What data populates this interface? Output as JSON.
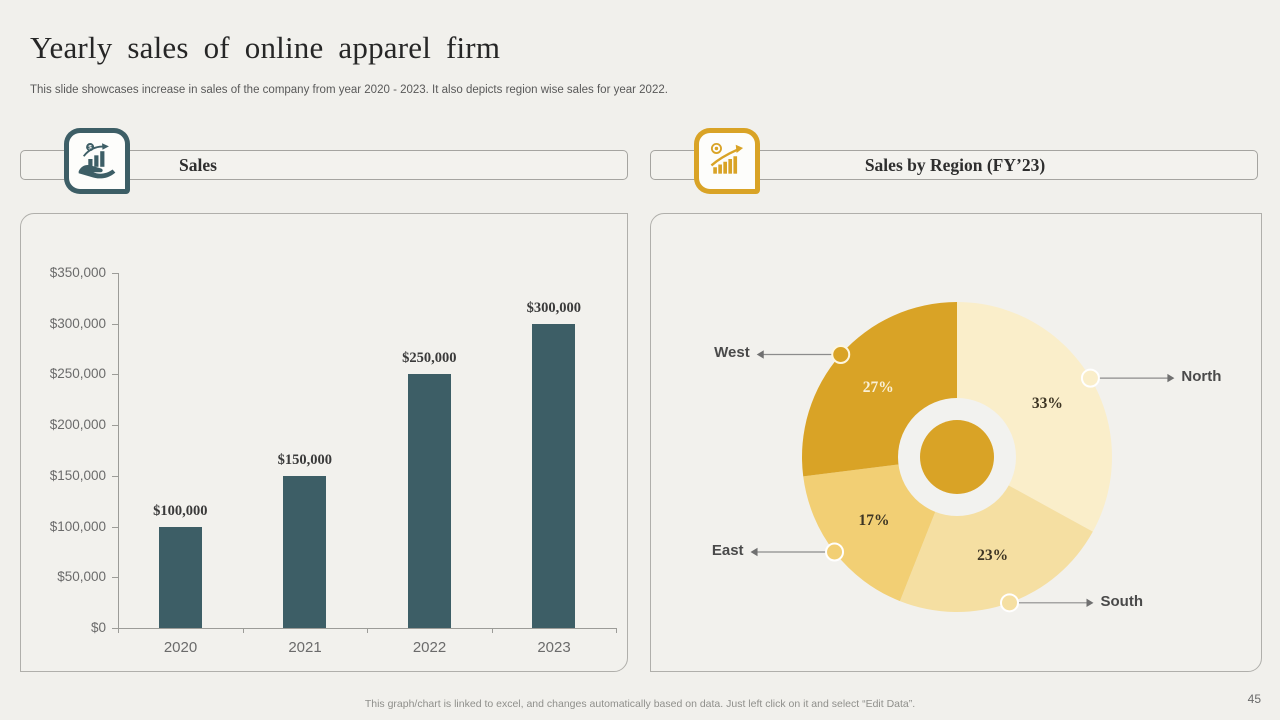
{
  "slide": {
    "title": "Yearly sales of online apparel firm",
    "subtitle": "This slide showcases increase in sales of the company from year 2020 - 2023. It also depicts region wise sales for year 2022.",
    "footer_note": "This graph/chart is linked to excel, and changes automatically based on data. Just left click on it and select “Edit Data”.",
    "page_number": "45",
    "background_color": "#f1f0ec"
  },
  "left_panel": {
    "header_label": "Sales",
    "icon": "hand-holding-growth-chart-icon",
    "accent_color": "#3d5e66"
  },
  "right_panel": {
    "header_label": "Sales by Region (FY’23)",
    "icon": "coin-growth-bars-icon",
    "accent_color": "#d9a326"
  },
  "chart_data": [
    {
      "type": "bar",
      "title": "Sales",
      "categories": [
        "2020",
        "2021",
        "2022",
        "2023"
      ],
      "values": [
        100000,
        150000,
        250000,
        300000
      ],
      "data_labels": [
        "$100,000",
        "$150,000",
        "$250,000",
        "$300,000"
      ],
      "xlabel": "",
      "ylabel": "",
      "ylim": [
        0,
        350000
      ],
      "y_tick_step": 50000,
      "y_tick_labels": [
        "$0",
        "$50,000",
        "$100,000",
        "$150,000",
        "$200,000",
        "$250,000",
        "$300,000",
        "$350,000"
      ],
      "grid": false,
      "legend": "none",
      "bar_color": "#3d5e66"
    },
    {
      "type": "pie",
      "subtype": "donut-with-center-circle",
      "title": "Sales by Region (FY’23)",
      "start_angle_deg": 0,
      "direction": "clockwise",
      "legend": "none",
      "ring_color": "#f2f2ef",
      "center_color": "#d9a326",
      "callout_line_color": "#8c8c8c",
      "slices": [
        {
          "label": "North",
          "value": 33,
          "pct_label": "33%",
          "color": "#faeeca",
          "pct_text_color": "#3d3524",
          "callout_side": "right",
          "marker_stroke": "#ffffff"
        },
        {
          "label": "South",
          "value": 23,
          "pct_label": "23%",
          "color": "#f5dfa2",
          "pct_text_color": "#3d3524",
          "callout_side": "right",
          "marker_stroke": "#ffffff"
        },
        {
          "label": "East",
          "value": 17,
          "pct_label": "17%",
          "color": "#f2cf74",
          "pct_text_color": "#3d3524",
          "callout_side": "left",
          "marker_stroke": "#ffffff"
        },
        {
          "label": "West",
          "value": 27,
          "pct_label": "27%",
          "color": "#d9a326",
          "pct_text_color": "#faf0d6",
          "callout_side": "left",
          "marker_stroke": "#fdf6e0"
        }
      ]
    }
  ]
}
